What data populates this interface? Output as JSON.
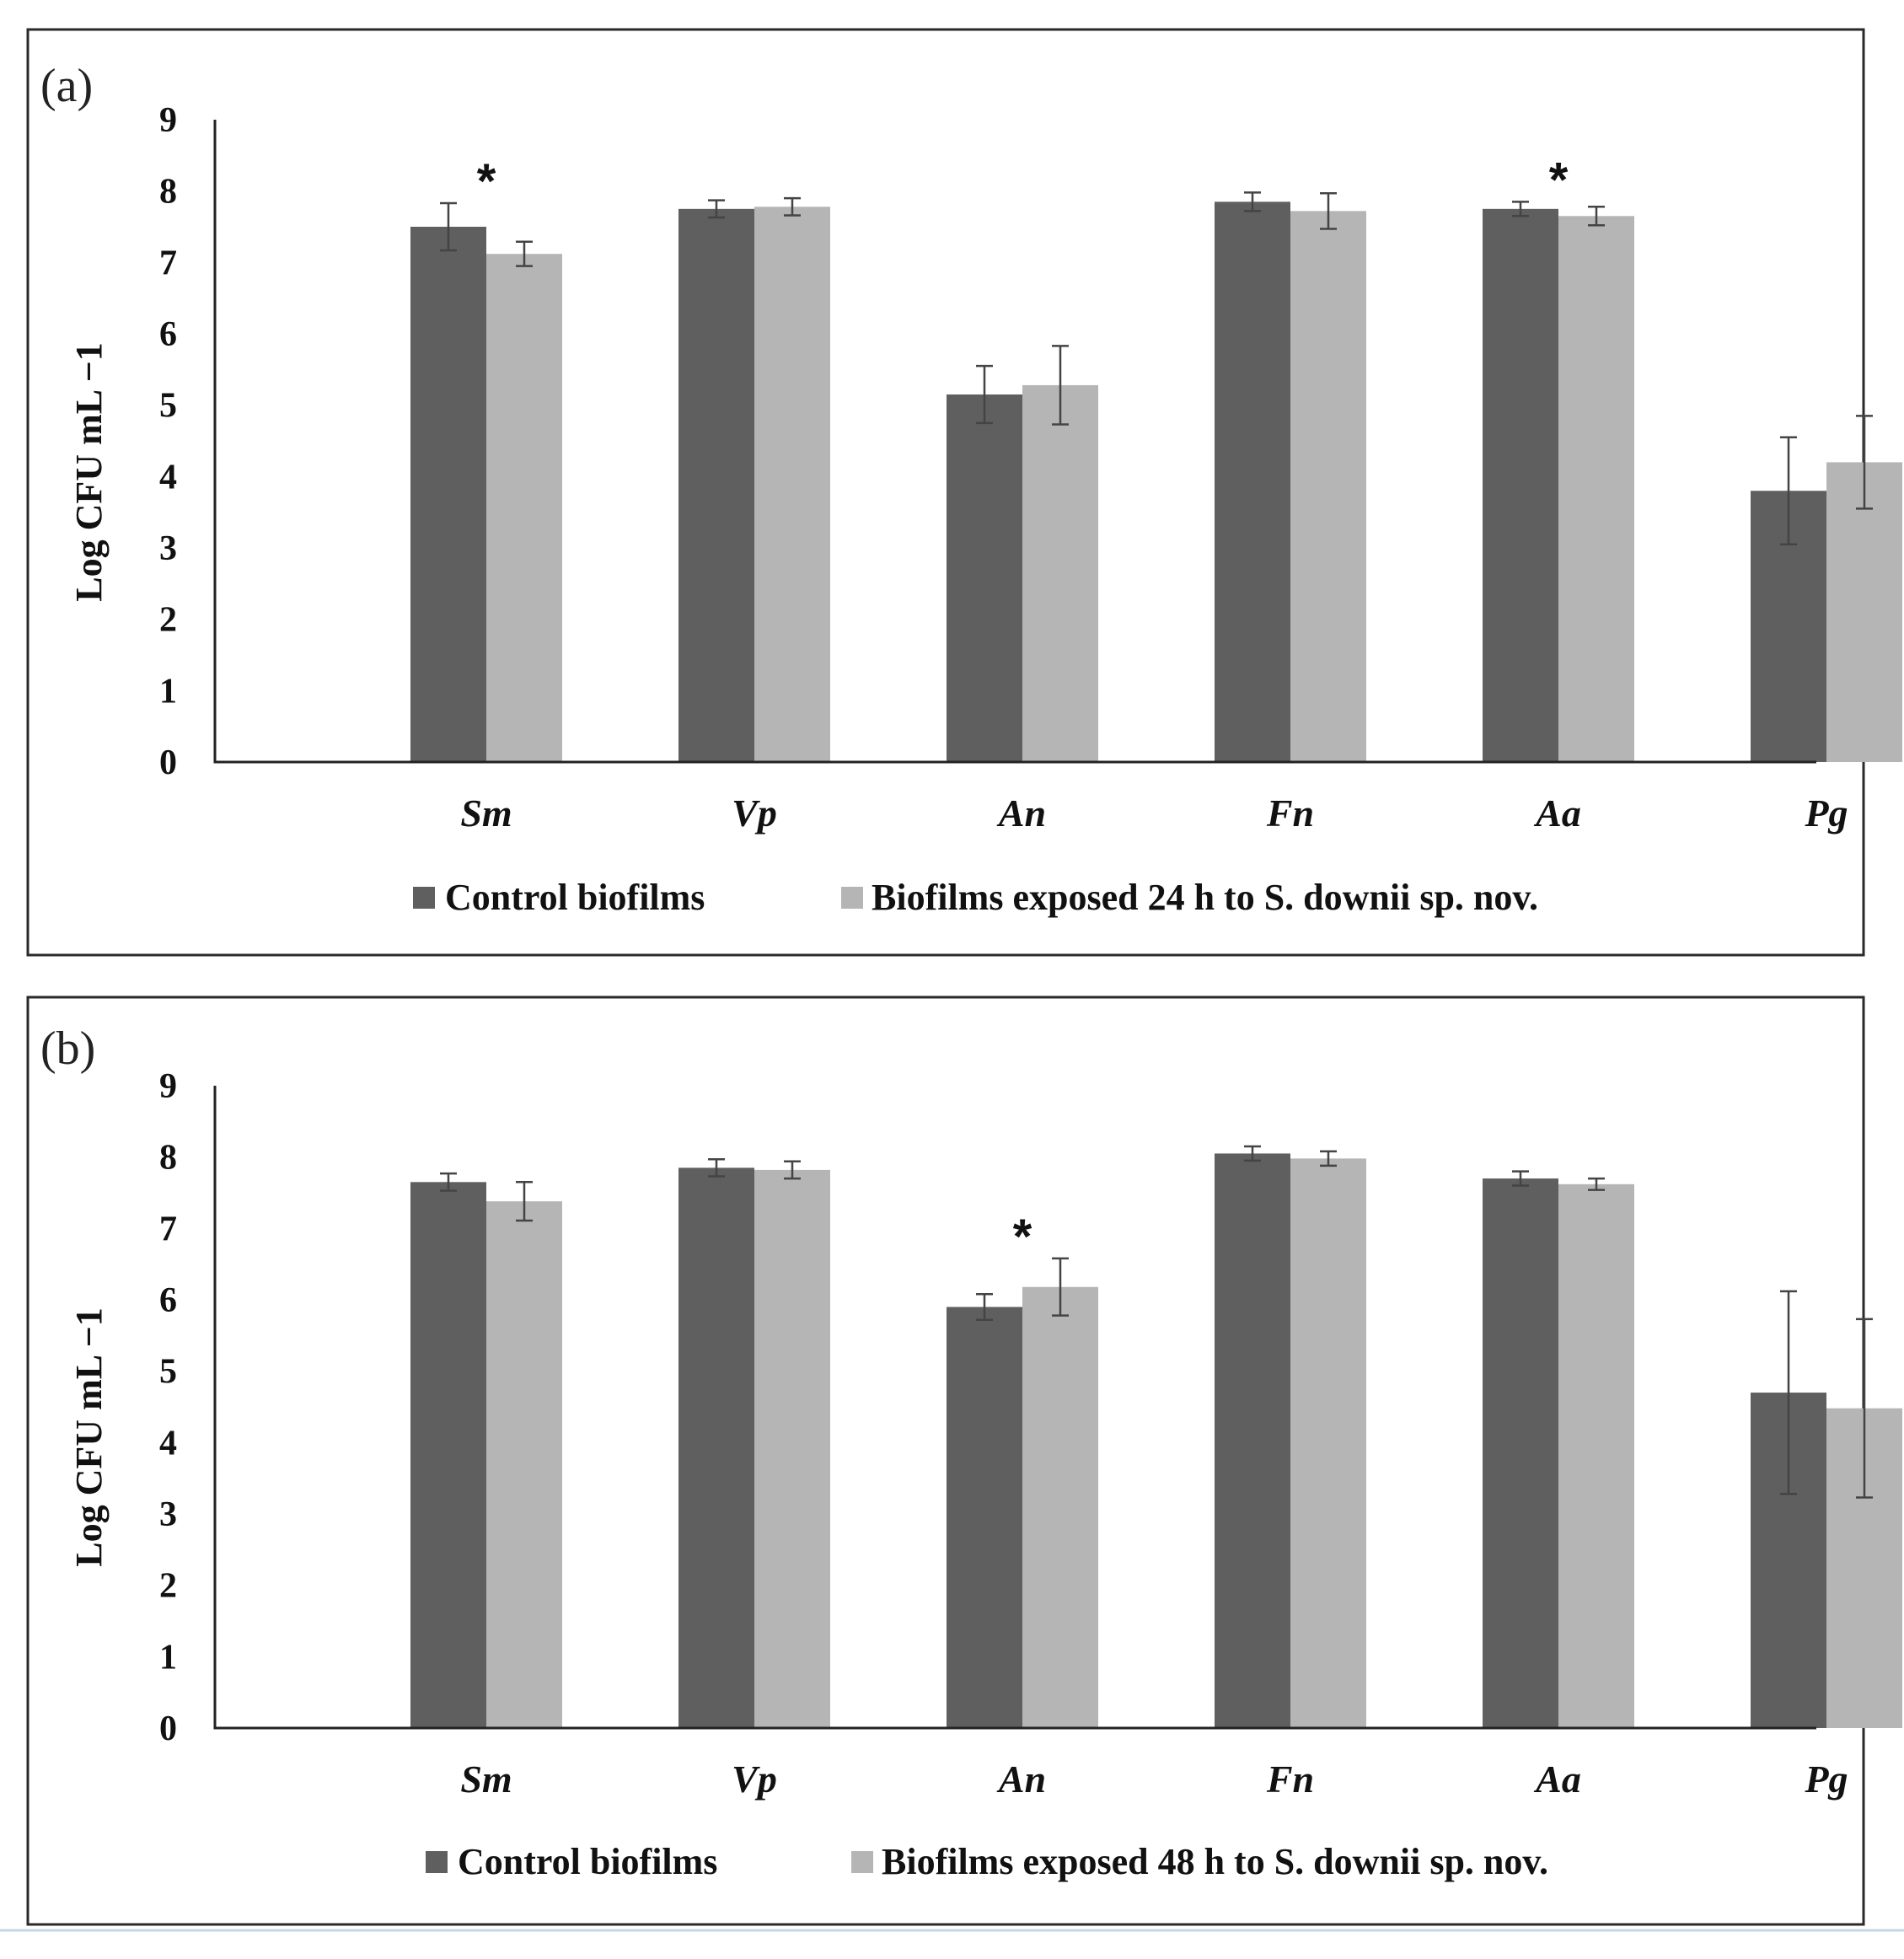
{
  "chart_data": [
    {
      "type": "bar",
      "panel_label": "(a)",
      "ylabel": "Log CFU mL −1",
      "xlabel": "",
      "ylim": [
        0,
        9
      ],
      "yticks": [
        "0",
        "1",
        "2",
        "3",
        "4",
        "5",
        "6",
        "7",
        "8",
        "9"
      ],
      "categories": [
        "Sm",
        "Vp",
        "An",
        "Fn",
        "Aa",
        "Pg"
      ],
      "series": [
        {
          "name": "Control biofilms",
          "color": "#5f5f5f",
          "values": [
            7.5,
            7.75,
            5.15,
            7.85,
            7.75,
            3.8
          ],
          "errors": [
            0.33,
            0.12,
            0.4,
            0.13,
            0.1,
            0.75
          ]
        },
        {
          "name": "Biofilms exposed 24 h to S. downii sp. nov.",
          "color": "#b5b5b5",
          "values": [
            7.12,
            7.78,
            5.28,
            7.72,
            7.65,
            4.2
          ],
          "errors": [
            0.17,
            0.12,
            0.55,
            0.25,
            0.13,
            0.65
          ]
        }
      ],
      "significance": [
        {
          "category": "Sm",
          "mark": "*"
        },
        {
          "category": "Aa",
          "mark": "*"
        }
      ],
      "legend_position": "bottom"
    },
    {
      "type": "bar",
      "panel_label": "(b)",
      "ylabel": "Log CFU mL −1",
      "xlabel": "",
      "ylim": [
        0,
        9
      ],
      "yticks": [
        "0",
        "1",
        "2",
        "3",
        "4",
        "5",
        "6",
        "7",
        "8",
        "9"
      ],
      "categories": [
        "Sm",
        "Vp",
        "An",
        "Fn",
        "Aa",
        "Pg"
      ],
      "series": [
        {
          "name": "Control biofilms",
          "color": "#5f5f5f",
          "values": [
            7.65,
            7.85,
            5.9,
            8.05,
            7.7,
            4.7
          ],
          "errors": [
            0.12,
            0.12,
            0.18,
            0.1,
            0.1,
            1.42
          ]
        },
        {
          "name": "Biofilms exposed 48 h to S. downii sp. nov.",
          "color": "#b5b5b5",
          "values": [
            7.38,
            7.82,
            6.18,
            7.98,
            7.62,
            4.48
          ],
          "errors": [
            0.27,
            0.12,
            0.4,
            0.1,
            0.08,
            1.25
          ]
        }
      ],
      "significance": [
        {
          "category": "An",
          "mark": "*"
        }
      ],
      "legend_position": "bottom"
    }
  ]
}
